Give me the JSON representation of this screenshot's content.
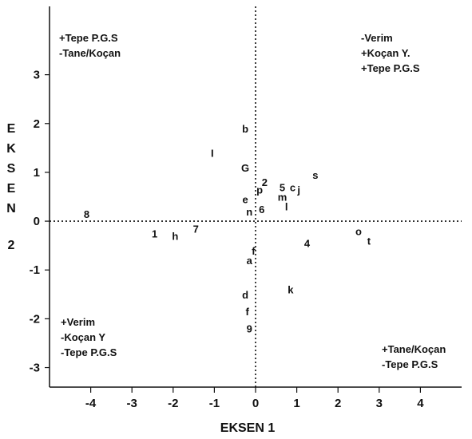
{
  "chart_data": {
    "type": "scatter",
    "title": "",
    "xlabel": "EKSEN 1",
    "ylabel": [
      "E",
      "K",
      "S",
      "E",
      "N",
      "2"
    ],
    "xlim": [
      -5,
      5
    ],
    "ylim": [
      -3.4,
      4.4
    ],
    "xticks": [
      "-4",
      "-3",
      "-2",
      "-1",
      "0",
      "1",
      "2",
      "3",
      "4"
    ],
    "yticks": [
      "3",
      "2",
      "1",
      "0",
      "-1",
      "-2",
      "-3"
    ],
    "grid": false,
    "legend": "none",
    "reference_lines": {
      "x": 0,
      "y": 0,
      "style": "dotted"
    },
    "quadrant_labels": {
      "top_left": [
        "+Tepe P.G.S",
        "-Tane/Koçan"
      ],
      "top_right": [
        "-Verim",
        "+Koçan Y.",
        "+Tepe P.G.S"
      ],
      "bottom_left": [
        "+Verim",
        "-Koçan Y",
        "-Tepe P.G.S"
      ],
      "bottom_right": [
        "+Tane/Koçan",
        "-Tepe P.G.S"
      ]
    },
    "points": [
      {
        "label": "b",
        "x": -0.25,
        "y": 1.9
      },
      {
        "label": "G",
        "x": -0.25,
        "y": 1.1
      },
      {
        "label": "2",
        "x": 0.22,
        "y": 0.8
      },
      {
        "label": "p",
        "x": 0.1,
        "y": 0.65
      },
      {
        "label": "e",
        "x": -0.25,
        "y": 0.45
      },
      {
        "label": "n",
        "x": -0.15,
        "y": 0.2
      },
      {
        "label": "6",
        "x": 0.15,
        "y": 0.25
      },
      {
        "label": "5",
        "x": 0.65,
        "y": 0.7
      },
      {
        "label": "c",
        "x": 0.9,
        "y": 0.7
      },
      {
        "label": "j",
        "x": 1.05,
        "y": 0.65
      },
      {
        "label": "m",
        "x": 0.65,
        "y": 0.5
      },
      {
        "label": "s",
        "x": 1.45,
        "y": 0.95
      },
      {
        "label": "l",
        "x": 0.75,
        "y": 0.3
      },
      {
        "label": "I",
        "x": -1.05,
        "y": 1.4
      },
      {
        "label": "8",
        "x": -4.1,
        "y": 0.15
      },
      {
        "label": "1",
        "x": -2.45,
        "y": -0.25
      },
      {
        "label": "h",
        "x": -1.95,
        "y": -0.3
      },
      {
        "label": "7",
        "x": -1.45,
        "y": -0.15
      },
      {
        "label": "f",
        "x": -0.05,
        "y": -0.6
      },
      {
        "label": "a",
        "x": -0.15,
        "y": -0.8
      },
      {
        "label": "4",
        "x": 1.25,
        "y": -0.45
      },
      {
        "label": "o",
        "x": 2.5,
        "y": -0.2
      },
      {
        "label": "t",
        "x": 2.75,
        "y": -0.4
      },
      {
        "label": "k",
        "x": 0.85,
        "y": -1.4
      },
      {
        "label": "d",
        "x": -0.25,
        "y": -1.5
      },
      {
        "label": "f",
        "x": -0.2,
        "y": -1.85
      },
      {
        "label": "9",
        "x": -0.15,
        "y": -2.2
      }
    ]
  }
}
